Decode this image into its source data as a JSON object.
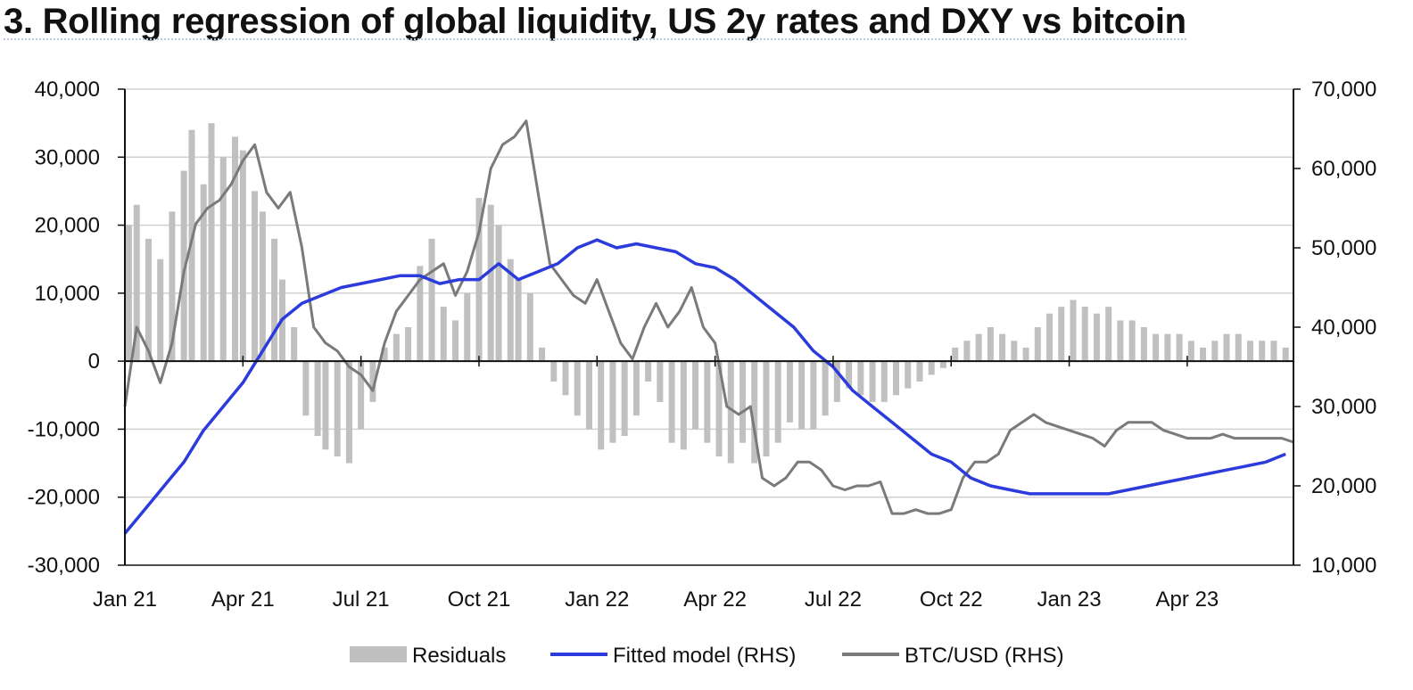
{
  "title": "3. Rolling regression of global liquidity, US 2y rates and DXY vs bitcoin",
  "colors": {
    "residuals": "#c0c0c0",
    "fitted": "#2b3bdc",
    "btc": "#7a7a7a",
    "grid": "#d0d0d0",
    "axis": "#111111"
  },
  "chart_data": {
    "type": "bar+line",
    "title": "3. Rolling regression of global liquidity, US 2y rates and DXY vs bitcoin",
    "x_axis": {
      "ticks": [
        "Jan 21",
        "Apr 21",
        "Jul 21",
        "Oct 21",
        "Jan 22",
        "Apr 22",
        "Jul 22",
        "Oct 22",
        "Jan 23",
        "Apr 23"
      ],
      "range": [
        "Jan 21",
        "Jun 23"
      ]
    },
    "y_left": {
      "ticks": [
        "40,000",
        "30,000",
        "20,000",
        "10,000",
        "0",
        "-10,000",
        "-20,000",
        "-30,000"
      ],
      "range": [
        -30000,
        40000
      ]
    },
    "y_right": {
      "ticks": [
        "70,000",
        "60,000",
        "50,000",
        "40,000",
        "30,000",
        "20,000",
        "10,000"
      ],
      "range": [
        10000,
        70000
      ]
    },
    "grid": true,
    "legend_position": "bottom",
    "series": [
      {
        "name": "Residuals",
        "type": "bar",
        "axis": "left",
        "x_months": [
          0.1,
          0.3,
          0.6,
          0.9,
          1.2,
          1.5,
          1.7,
          2.0,
          2.2,
          2.5,
          2.8,
          3.0,
          3.3,
          3.5,
          3.8,
          4.0,
          4.3,
          4.6,
          4.9,
          5.1,
          5.4,
          5.7,
          6.0,
          6.3,
          6.6,
          6.9,
          7.2,
          7.5,
          7.8,
          8.1,
          8.4,
          8.7,
          9.0,
          9.3,
          9.5,
          9.8,
          10.0,
          10.3,
          10.6,
          10.9,
          11.2,
          11.5,
          11.8,
          12.1,
          12.4,
          12.7,
          13.0,
          13.3,
          13.6,
          13.9,
          14.2,
          14.5,
          14.8,
          15.1,
          15.4,
          15.7,
          16.0,
          16.3,
          16.6,
          16.9,
          17.2,
          17.5,
          17.8,
          18.1,
          18.4,
          18.7,
          19.0,
          19.3,
          19.6,
          19.9,
          20.2,
          20.5,
          20.8,
          21.1,
          21.4,
          21.7,
          22.0,
          22.3,
          22.6,
          22.9,
          23.2,
          23.5,
          23.8,
          24.1,
          24.4,
          24.7,
          25.0,
          25.3,
          25.6,
          25.9,
          26.2,
          26.5,
          26.8,
          27.1,
          27.4,
          27.7,
          28.0,
          28.3,
          28.6,
          28.9,
          29.2,
          29.5
        ],
        "values": [
          20000,
          23000,
          18000,
          15000,
          22000,
          28000,
          34000,
          26000,
          35000,
          30000,
          33000,
          31000,
          25000,
          22000,
          18000,
          12000,
          5000,
          -8000,
          -11000,
          -13000,
          -14000,
          -15000,
          -10000,
          -6000,
          2000,
          4000,
          5000,
          14000,
          18000,
          8000,
          6000,
          10000,
          24000,
          23000,
          20000,
          15000,
          12000,
          10000,
          2000,
          -3000,
          -5000,
          -8000,
          -10000,
          -13000,
          -12000,
          -11000,
          -8000,
          -3000,
          -6000,
          -12000,
          -13000,
          -10000,
          -12000,
          -14000,
          -15000,
          -12000,
          -15000,
          -14000,
          -12000,
          -9000,
          -10000,
          -10000,
          -8000,
          -6000,
          -4000,
          -5000,
          -6000,
          -6000,
          -5000,
          -4000,
          -3000,
          -2000,
          -1000,
          2000,
          3000,
          4000,
          5000,
          4000,
          3000,
          2000,
          5000,
          7000,
          8000,
          9000,
          8000,
          7000,
          8000,
          6000,
          6000,
          5000,
          4000,
          4000,
          4000,
          3000,
          2000,
          3000,
          4000,
          4000,
          3000,
          3000,
          3000,
          2000
        ]
      },
      {
        "name": "Fitted model (RHS)",
        "type": "line",
        "axis": "right",
        "x_months": [
          0,
          0.5,
          1,
          1.5,
          2,
          2.5,
          3,
          3.5,
          4,
          4.5,
          5,
          5.5,
          6,
          6.5,
          7,
          7.5,
          8,
          8.5,
          9,
          9.5,
          10,
          10.5,
          11,
          11.5,
          12,
          12.5,
          13,
          13.5,
          14,
          14.5,
          15,
          15.5,
          16,
          16.5,
          17,
          17.5,
          18,
          18.5,
          19,
          19.5,
          20,
          20.5,
          21,
          21.5,
          22,
          22.5,
          23,
          23.5,
          24,
          24.5,
          25,
          25.5,
          26,
          26.5,
          27,
          27.5,
          28,
          28.5,
          29,
          29.5
        ],
        "values": [
          14000,
          17000,
          20000,
          23000,
          27000,
          30000,
          33000,
          37000,
          41000,
          43000,
          44000,
          45000,
          45500,
          46000,
          46500,
          46500,
          45500,
          46000,
          46000,
          48000,
          46000,
          47000,
          48000,
          50000,
          51000,
          50000,
          50500,
          50000,
          49500,
          48000,
          47500,
          46000,
          44000,
          42000,
          40000,
          37000,
          35000,
          32000,
          30000,
          28000,
          26000,
          24000,
          23000,
          21000,
          20000,
          19500,
          19000,
          19000,
          19000,
          19000,
          19000,
          19500,
          20000,
          20500,
          21000,
          21500,
          22000,
          22500,
          23000,
          24000
        ]
      },
      {
        "name": "BTC/USD (RHS)",
        "type": "line",
        "axis": "right",
        "x_months": [
          0,
          0.3,
          0.6,
          0.9,
          1.2,
          1.5,
          1.8,
          2.1,
          2.4,
          2.7,
          3.0,
          3.3,
          3.6,
          3.9,
          4.2,
          4.5,
          4.8,
          5.1,
          5.4,
          5.7,
          6.0,
          6.3,
          6.6,
          6.9,
          7.2,
          7.5,
          7.8,
          8.1,
          8.4,
          8.7,
          9.0,
          9.3,
          9.6,
          9.9,
          10.2,
          10.5,
          10.8,
          11.1,
          11.4,
          11.7,
          12.0,
          12.3,
          12.6,
          12.9,
          13.2,
          13.5,
          13.8,
          14.1,
          14.4,
          14.7,
          15.0,
          15.3,
          15.6,
          15.9,
          16.2,
          16.5,
          16.8,
          17.1,
          17.4,
          17.7,
          18.0,
          18.3,
          18.6,
          18.9,
          19.2,
          19.5,
          19.8,
          20.1,
          20.4,
          20.7,
          21.0,
          21.3,
          21.6,
          21.9,
          22.2,
          22.5,
          22.8,
          23.1,
          23.4,
          23.7,
          24.0,
          24.3,
          24.6,
          24.9,
          25.2,
          25.5,
          25.8,
          26.1,
          26.4,
          26.7,
          27.0,
          27.3,
          27.6,
          27.9,
          28.2,
          28.5,
          28.8,
          29.1,
          29.4,
          29.7
        ],
        "values": [
          30000,
          40000,
          37000,
          33000,
          38000,
          47000,
          53000,
          55000,
          56000,
          58000,
          61000,
          63000,
          57000,
          55000,
          57000,
          50000,
          40000,
          38000,
          37000,
          35000,
          34000,
          32000,
          38000,
          42000,
          44000,
          46000,
          47000,
          48000,
          44000,
          47000,
          52000,
          60000,
          63000,
          64000,
          66000,
          57000,
          48000,
          46000,
          44000,
          43000,
          46000,
          42000,
          38000,
          36000,
          40000,
          43000,
          40000,
          42000,
          45000,
          40000,
          38000,
          30000,
          29000,
          30000,
          21000,
          20000,
          21000,
          23000,
          23000,
          22000,
          20000,
          19500,
          20000,
          20000,
          20500,
          16500,
          16500,
          17000,
          16500,
          16500,
          17000,
          21000,
          23000,
          23000,
          24000,
          27000,
          28000,
          29000,
          28000,
          27500,
          27000,
          26500,
          26000,
          25000,
          27000,
          28000,
          28000,
          28000,
          27000,
          26500,
          26000,
          26000,
          26000,
          26500,
          26000,
          26000,
          26000,
          26000,
          26000,
          25500
        ]
      }
    ]
  }
}
